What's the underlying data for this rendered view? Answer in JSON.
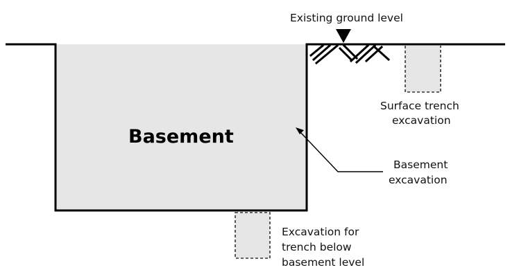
{
  "labels": {
    "ground": "Existing ground level",
    "basement": "Basement",
    "surface_trench_line1": "Surface trench",
    "surface_trench_line2": "excavation",
    "basement_excavation_line1": "Basement",
    "basement_excavation_line2": "excavation",
    "below_trench_line1": "Excavation for",
    "below_trench_line2": "trench below",
    "below_trench_line3": "basement level"
  },
  "colors": {
    "basement_fill": "#e6e6e6",
    "trench_fill": "#e6e6e6",
    "line": "#000000",
    "dashed": "#333333"
  }
}
